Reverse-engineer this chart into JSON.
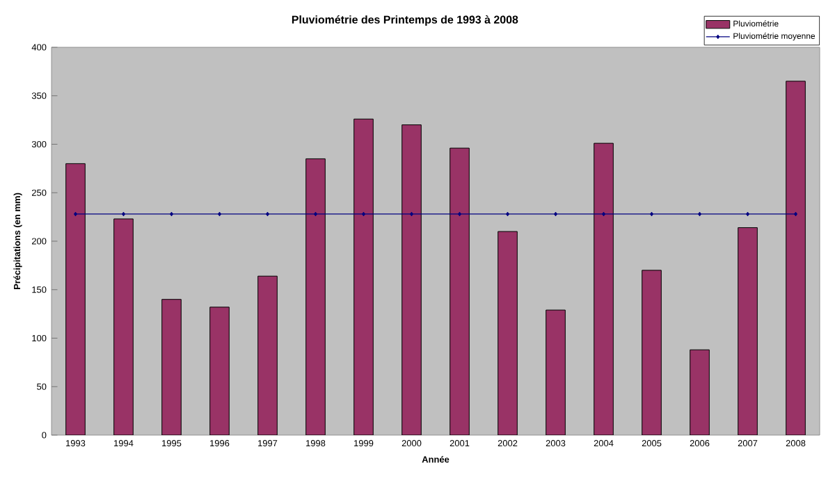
{
  "chart_data": {
    "type": "bar",
    "title": "Pluviométrie des Printemps de 1993 à 2008",
    "xlabel": "Année",
    "ylabel": "Précipitations (en mm)",
    "categories": [
      "1993",
      "1994",
      "1995",
      "1996",
      "1997",
      "1998",
      "1999",
      "2000",
      "2001",
      "2002",
      "2003",
      "2004",
      "2005",
      "2006",
      "2007",
      "2008"
    ],
    "series": [
      {
        "name": "Pluviométrie",
        "color": "#993366",
        "values": [
          280,
          223,
          140,
          132,
          164,
          285,
          326,
          320,
          296,
          210,
          129,
          301,
          170,
          88,
          214,
          365
        ]
      },
      {
        "name": "Pluviométrie moyenne",
        "type": "line",
        "color": "#000080",
        "marker": "diamond",
        "values": [
          228,
          228,
          228,
          228,
          228,
          228,
          228,
          228,
          228,
          228,
          228,
          228,
          228,
          228,
          228,
          228
        ]
      }
    ],
    "ylim": [
      0,
      400
    ],
    "yticks": [
      0,
      50,
      100,
      150,
      200,
      250,
      300,
      350,
      400
    ],
    "grid": false,
    "legend": "top right"
  }
}
